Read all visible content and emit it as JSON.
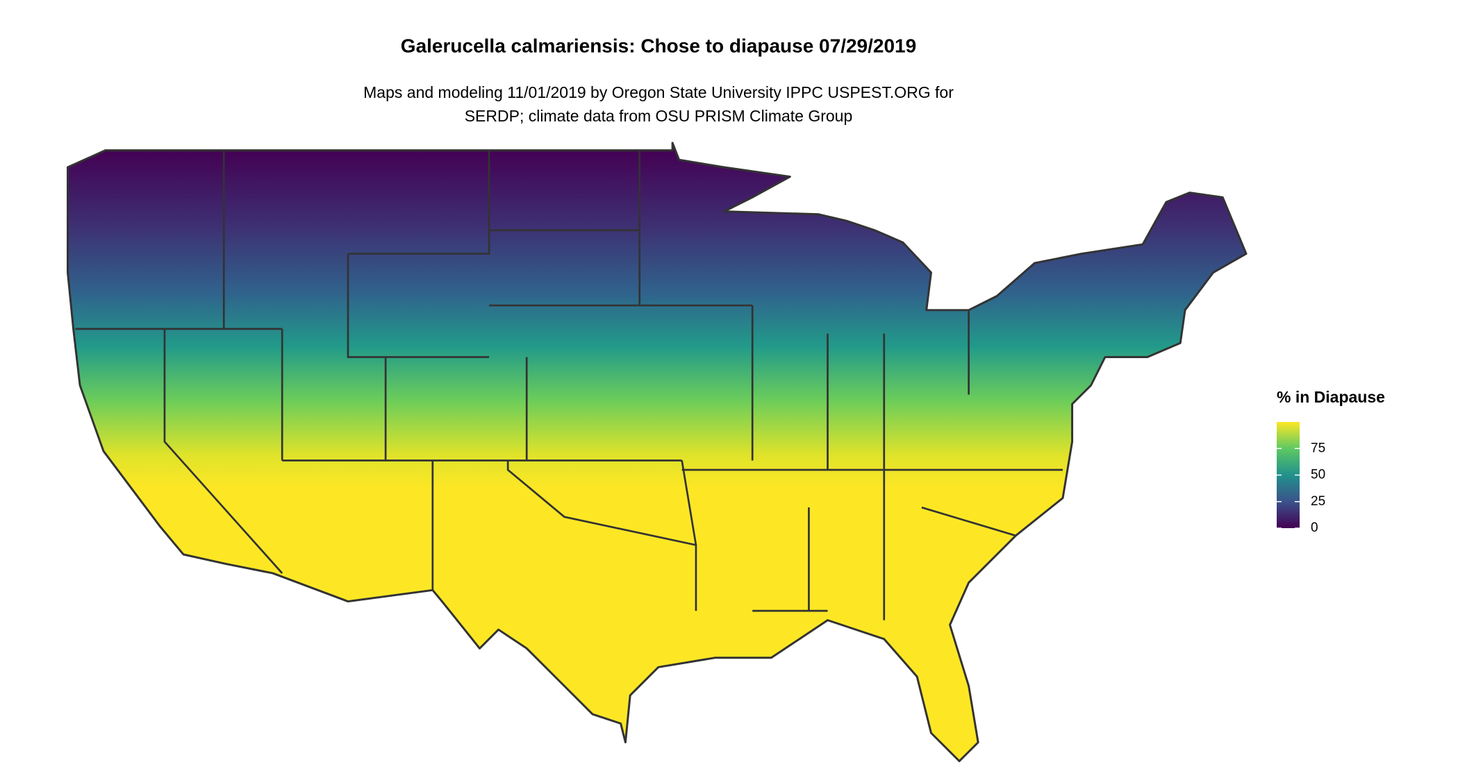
{
  "title": "Galerucella calmariensis: Chose to diapause 07/29/2019",
  "subtitle": [
    "Maps and modeling 11/01/2019 by Oregon State University IPPC USPEST.ORG for",
    "SERDP; climate data from OSU PRISM Climate Group"
  ],
  "legend": {
    "title": "% in Diapause",
    "lim": [
      0,
      100
    ],
    "ticks": [
      0,
      25,
      50,
      75
    ]
  }
}
